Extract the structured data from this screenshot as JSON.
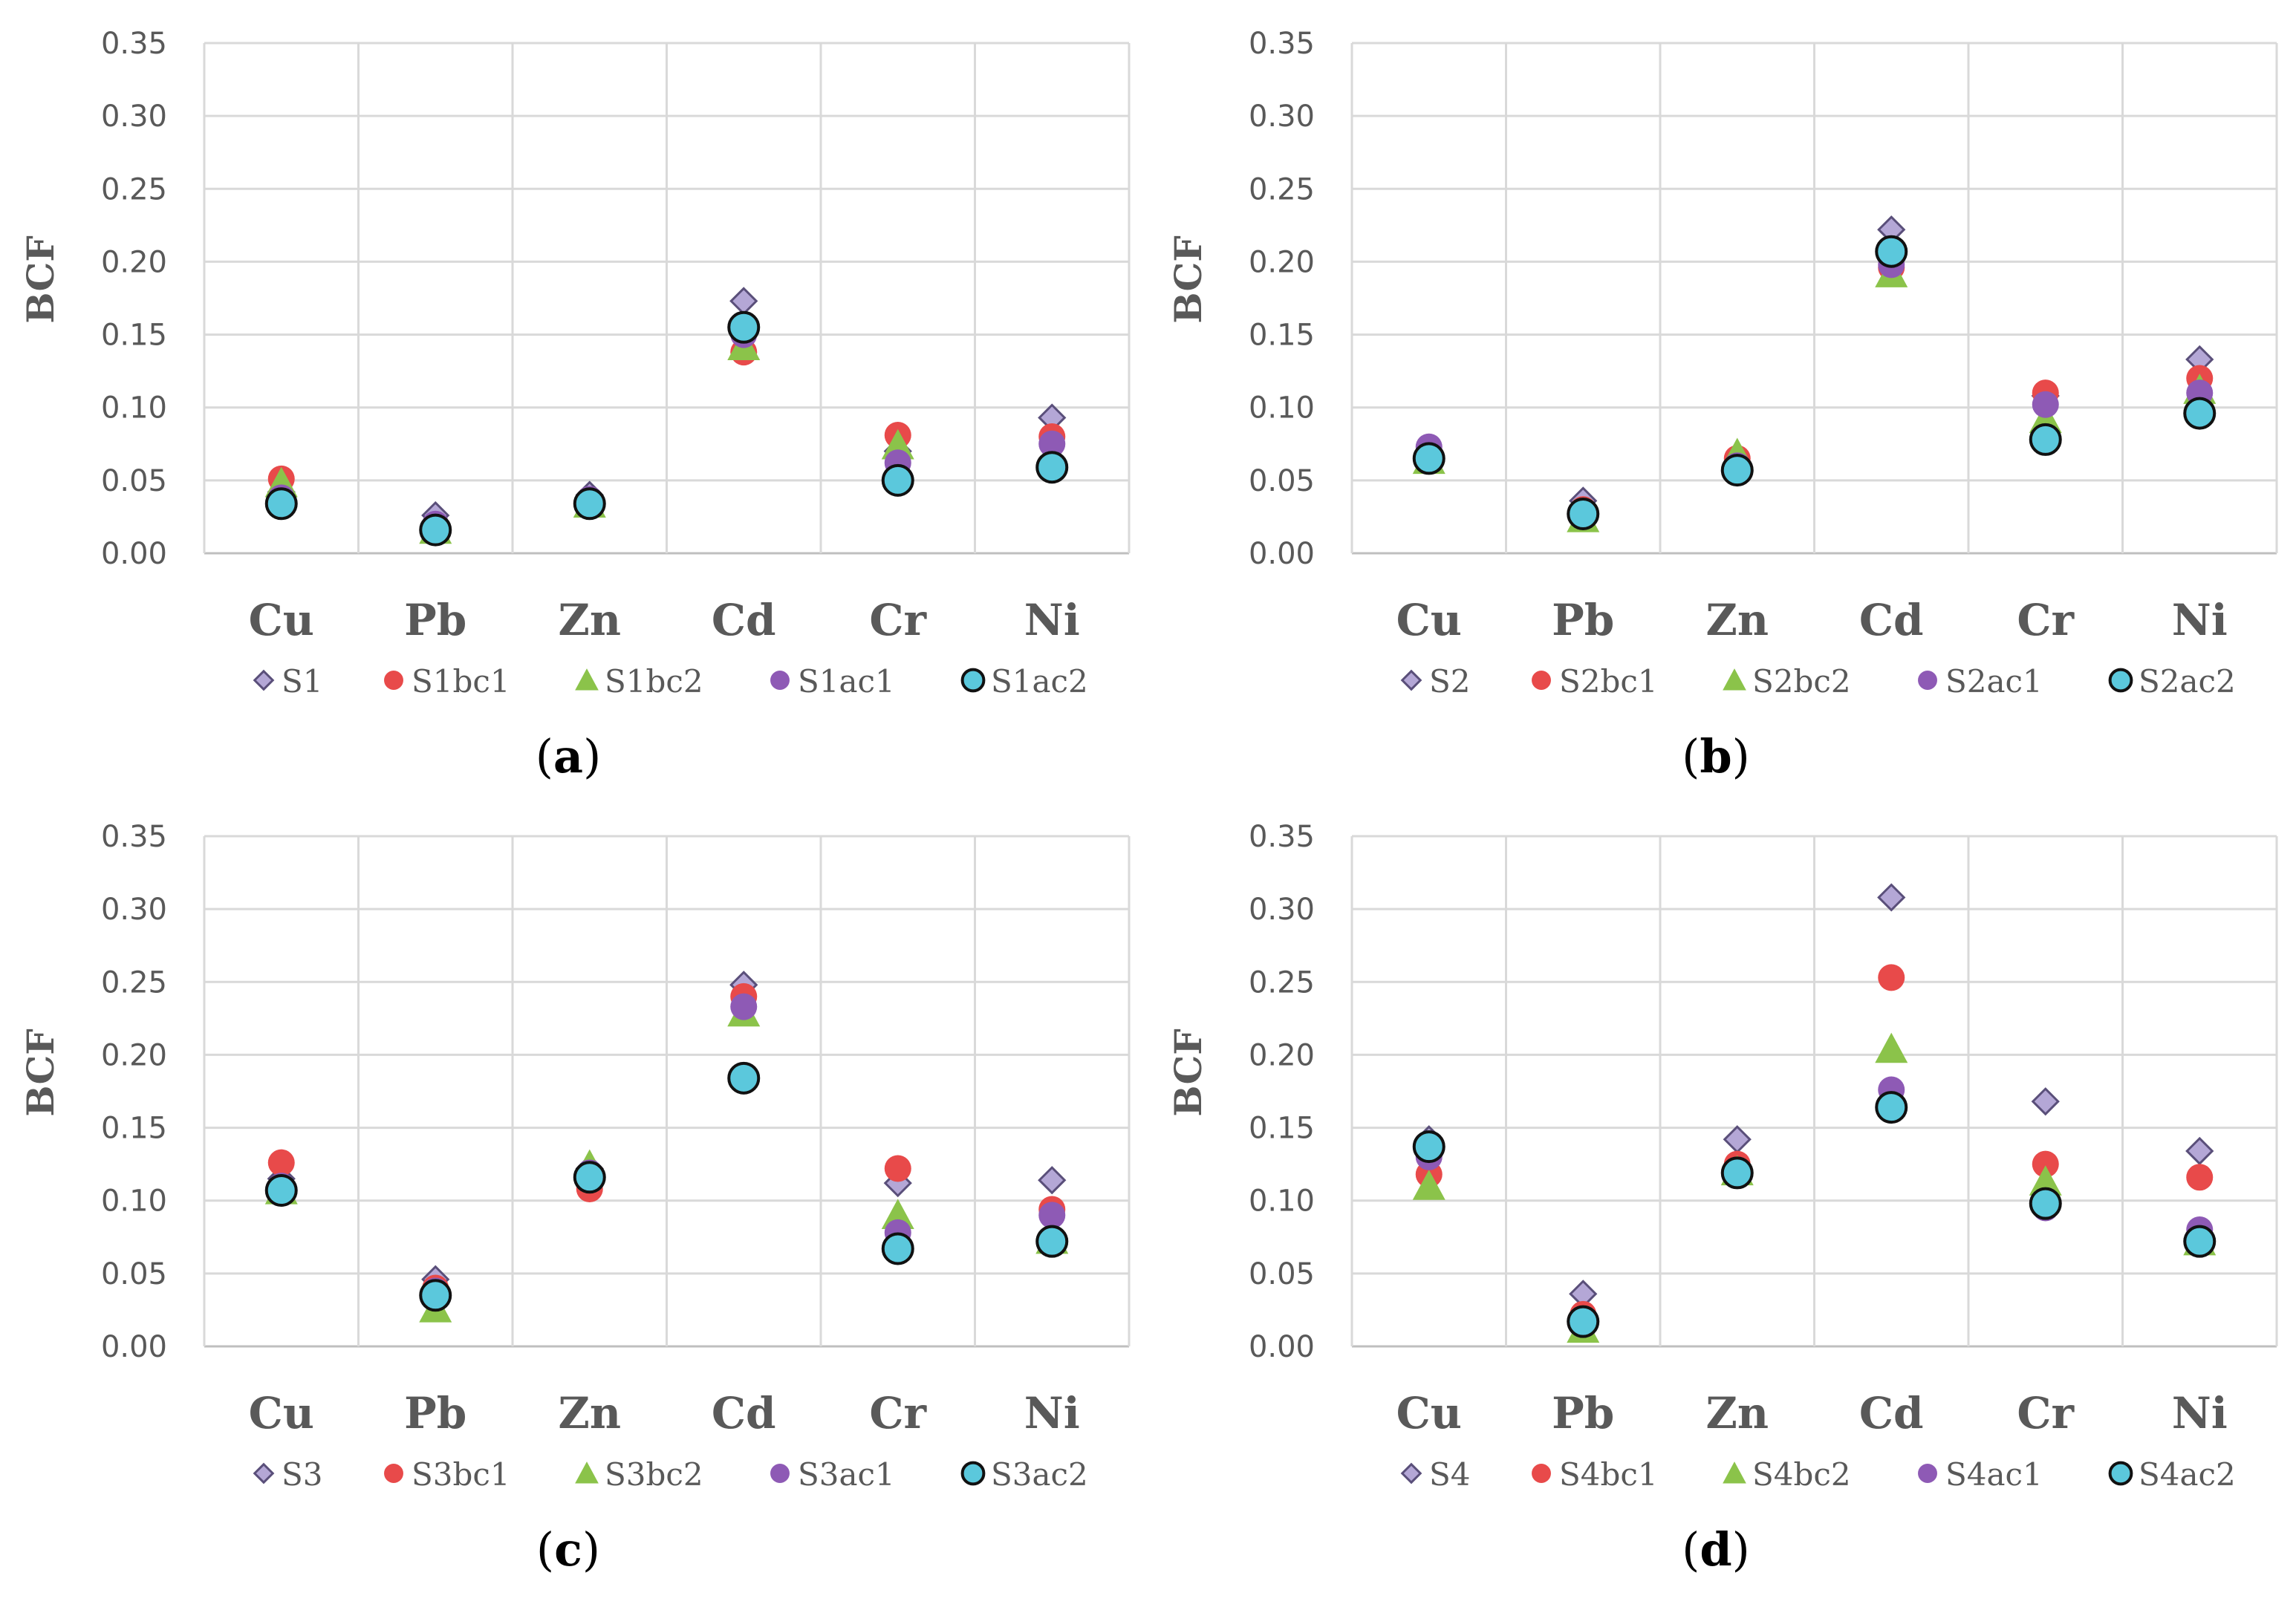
{
  "figure": {
    "colors": {
      "grid": "#d9d9d9",
      "axis": "#bfbfbf",
      "diamond": "#b4a7d6",
      "red": "#e84a4a",
      "green": "#8bc34a",
      "purple": "#8e5ab5",
      "cyan": "#5bc8dc",
      "outline": "#111111"
    }
  },
  "chart_data": [
    {
      "panel": "a",
      "type": "scatter",
      "ylabel": "BCF",
      "ylim": [
        0,
        0.35
      ],
      "yticks": [
        "0.00",
        "0.05",
        "0.10",
        "0.15",
        "0.20",
        "0.25",
        "0.30",
        "0.35"
      ],
      "categories": [
        "Cu",
        "Pb",
        "Zn",
        "Cd",
        "Cr",
        "Ni"
      ],
      "series": [
        {
          "name": "S1",
          "marker": "diamond",
          "values": [
            0.042,
            0.026,
            0.04,
            0.173,
            0.07,
            0.093
          ]
        },
        {
          "name": "S1bc1",
          "marker": "circle-red",
          "values": [
            0.051,
            0.018,
            0.036,
            0.138,
            0.081,
            0.08
          ]
        },
        {
          "name": "S1bc2",
          "marker": "triangle",
          "values": [
            0.048,
            0.016,
            0.034,
            0.142,
            0.074,
            0.068
          ]
        },
        {
          "name": "S1ac1",
          "marker": "circle-purple",
          "values": [
            0.038,
            0.02,
            0.037,
            0.15,
            0.062,
            0.075
          ]
        },
        {
          "name": "S1ac2",
          "marker": "circle-cyan",
          "values": [
            0.034,
            0.016,
            0.034,
            0.155,
            0.05,
            0.059
          ]
        }
      ],
      "panel_label": {
        "open": "(",
        "letter": "a",
        "close": ")"
      }
    },
    {
      "panel": "b",
      "type": "scatter",
      "ylabel": "BCF",
      "ylim": [
        0,
        0.35
      ],
      "yticks": [
        "0.00",
        "0.05",
        "0.10",
        "0.15",
        "0.20",
        "0.25",
        "0.30",
        "0.35"
      ],
      "categories": [
        "Cu",
        "Pb",
        "Zn",
        "Cd",
        "Cr",
        "Ni"
      ],
      "series": [
        {
          "name": "S2",
          "marker": "diamond",
          "values": [
            0.07,
            0.036,
            0.062,
            0.222,
            0.108,
            0.133
          ]
        },
        {
          "name": "S2bc1",
          "marker": "circle-red",
          "values": [
            0.066,
            0.03,
            0.065,
            0.196,
            0.11,
            0.12
          ]
        },
        {
          "name": "S2bc2",
          "marker": "triangle",
          "values": [
            0.064,
            0.024,
            0.068,
            0.192,
            0.092,
            0.112
          ]
        },
        {
          "name": "S2ac1",
          "marker": "circle-purple",
          "values": [
            0.073,
            0.028,
            0.06,
            0.198,
            0.102,
            0.11
          ]
        },
        {
          "name": "S2ac2",
          "marker": "circle-cyan",
          "values": [
            0.065,
            0.027,
            0.057,
            0.207,
            0.078,
            0.096
          ]
        }
      ],
      "panel_label": {
        "open": "(",
        "letter": "b",
        "close": ")"
      }
    },
    {
      "panel": "c",
      "type": "scatter",
      "ylabel": "BCF",
      "ylim": [
        0,
        0.35
      ],
      "yticks": [
        "0.00",
        "0.05",
        "0.10",
        "0.15",
        "0.20",
        "0.25",
        "0.30",
        "0.35"
      ],
      "categories": [
        "Cu",
        "Pb",
        "Zn",
        "Cd",
        "Cr",
        "Ni"
      ],
      "series": [
        {
          "name": "S3",
          "marker": "diamond",
          "values": [
            0.115,
            0.046,
            0.122,
            0.248,
            0.112,
            0.114
          ]
        },
        {
          "name": "S3bc1",
          "marker": "circle-red",
          "values": [
            0.126,
            0.04,
            0.108,
            0.24,
            0.122,
            0.094
          ]
        },
        {
          "name": "S3bc2",
          "marker": "triangle",
          "values": [
            0.107,
            0.026,
            0.124,
            0.229,
            0.09,
            0.073
          ]
        },
        {
          "name": "S3ac1",
          "marker": "circle-purple",
          "values": [
            0.11,
            0.038,
            0.119,
            0.233,
            0.078,
            0.09
          ]
        },
        {
          "name": "S3ac2",
          "marker": "circle-cyan",
          "values": [
            0.107,
            0.035,
            0.116,
            0.184,
            0.067,
            0.072
          ]
        }
      ],
      "panel_label": {
        "open": "(",
        "letter": "c",
        "close": ")"
      }
    },
    {
      "panel": "d",
      "type": "scatter",
      "ylabel": "BCF",
      "ylim": [
        0,
        0.35
      ],
      "yticks": [
        "0.00",
        "0.05",
        "0.10",
        "0.15",
        "0.20",
        "0.25",
        "0.30",
        "0.35"
      ],
      "categories": [
        "Cu",
        "Pb",
        "Zn",
        "Cd",
        "Cr",
        "Ni"
      ],
      "series": [
        {
          "name": "S4",
          "marker": "diamond",
          "values": [
            0.142,
            0.036,
            0.142,
            0.308,
            0.168,
            0.134
          ]
        },
        {
          "name": "S4bc1",
          "marker": "circle-red",
          "values": [
            0.118,
            0.022,
            0.125,
            0.253,
            0.125,
            0.116
          ]
        },
        {
          "name": "S4bc2",
          "marker": "triangle",
          "values": [
            0.11,
            0.012,
            0.12,
            0.204,
            0.113,
            0.072
          ]
        },
        {
          "name": "S4ac1",
          "marker": "circle-purple",
          "values": [
            0.13,
            0.018,
            0.12,
            0.176,
            0.095,
            0.08
          ]
        },
        {
          "name": "S4ac2",
          "marker": "circle-cyan",
          "values": [
            0.137,
            0.017,
            0.119,
            0.164,
            0.098,
            0.072
          ]
        }
      ],
      "panel_label": {
        "open": "(",
        "letter": "d",
        "close": ")"
      }
    }
  ]
}
